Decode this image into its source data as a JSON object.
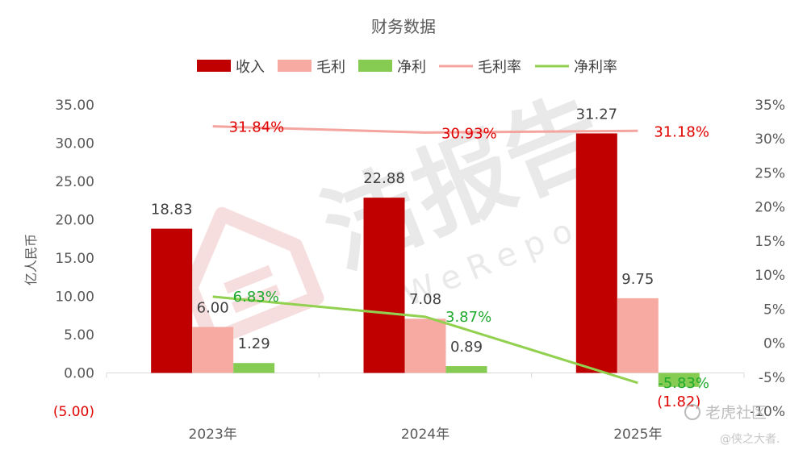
{
  "chart_data": {
    "type": "bar",
    "title": "财务数据",
    "ylabel": "亿人民币",
    "categories": [
      "2023年",
      "2024年",
      "2025年"
    ],
    "y_left": {
      "range": [
        -5,
        35
      ],
      "ticks": [
        -5,
        0,
        5,
        10,
        15,
        20,
        25,
        30,
        35
      ],
      "tick_labels": [
        "(5.00)",
        "0.00",
        "5.00",
        "10.00",
        "15.00",
        "20.00",
        "25.00",
        "30.00",
        "35.00"
      ]
    },
    "y_right": {
      "range": [
        -10,
        35
      ],
      "ticks": [
        -10,
        -5,
        0,
        5,
        10,
        15,
        20,
        25,
        30,
        35
      ],
      "tick_labels": [
        "-10%",
        "-5%",
        "0%",
        "5%",
        "10%",
        "15%",
        "20%",
        "25%",
        "30%",
        "35%"
      ]
    },
    "series": [
      {
        "name": "收入",
        "kind": "bar",
        "axis": "left",
        "color": "#c00000",
        "values": [
          18.83,
          22.88,
          31.27
        ],
        "labels": [
          "18.83",
          "22.88",
          "31.27"
        ]
      },
      {
        "name": "毛利",
        "kind": "bar",
        "axis": "left",
        "color": "#f6aaa2",
        "values": [
          6.0,
          7.08,
          9.75
        ],
        "labels": [
          "6.00",
          "7.08",
          "9.75"
        ]
      },
      {
        "name": "净利",
        "kind": "bar",
        "axis": "left",
        "color": "#86cc52",
        "values": [
          1.29,
          0.89,
          -1.82
        ],
        "labels": [
          "1.29",
          "0.89",
          "(1.82)"
        ]
      },
      {
        "name": "毛利率",
        "kind": "line",
        "axis": "right",
        "color": "#f4a5a0",
        "values": [
          31.84,
          30.93,
          31.18
        ],
        "labels": [
          "31.84%",
          "30.93%",
          "31.18%"
        ]
      },
      {
        "name": "净利率",
        "kind": "line",
        "axis": "right",
        "color": "#92d050",
        "values": [
          6.83,
          3.87,
          -5.83
        ],
        "labels": [
          "6.83%",
          "3.87%",
          "-5.83%"
        ]
      }
    ],
    "legend_position": "top",
    "grid": false
  },
  "watermark": {
    "text": "洁报告",
    "sub": "iWeReport"
  },
  "corner_logo": {
    "brand": "老虎社区",
    "author": "@侠之大者."
  }
}
